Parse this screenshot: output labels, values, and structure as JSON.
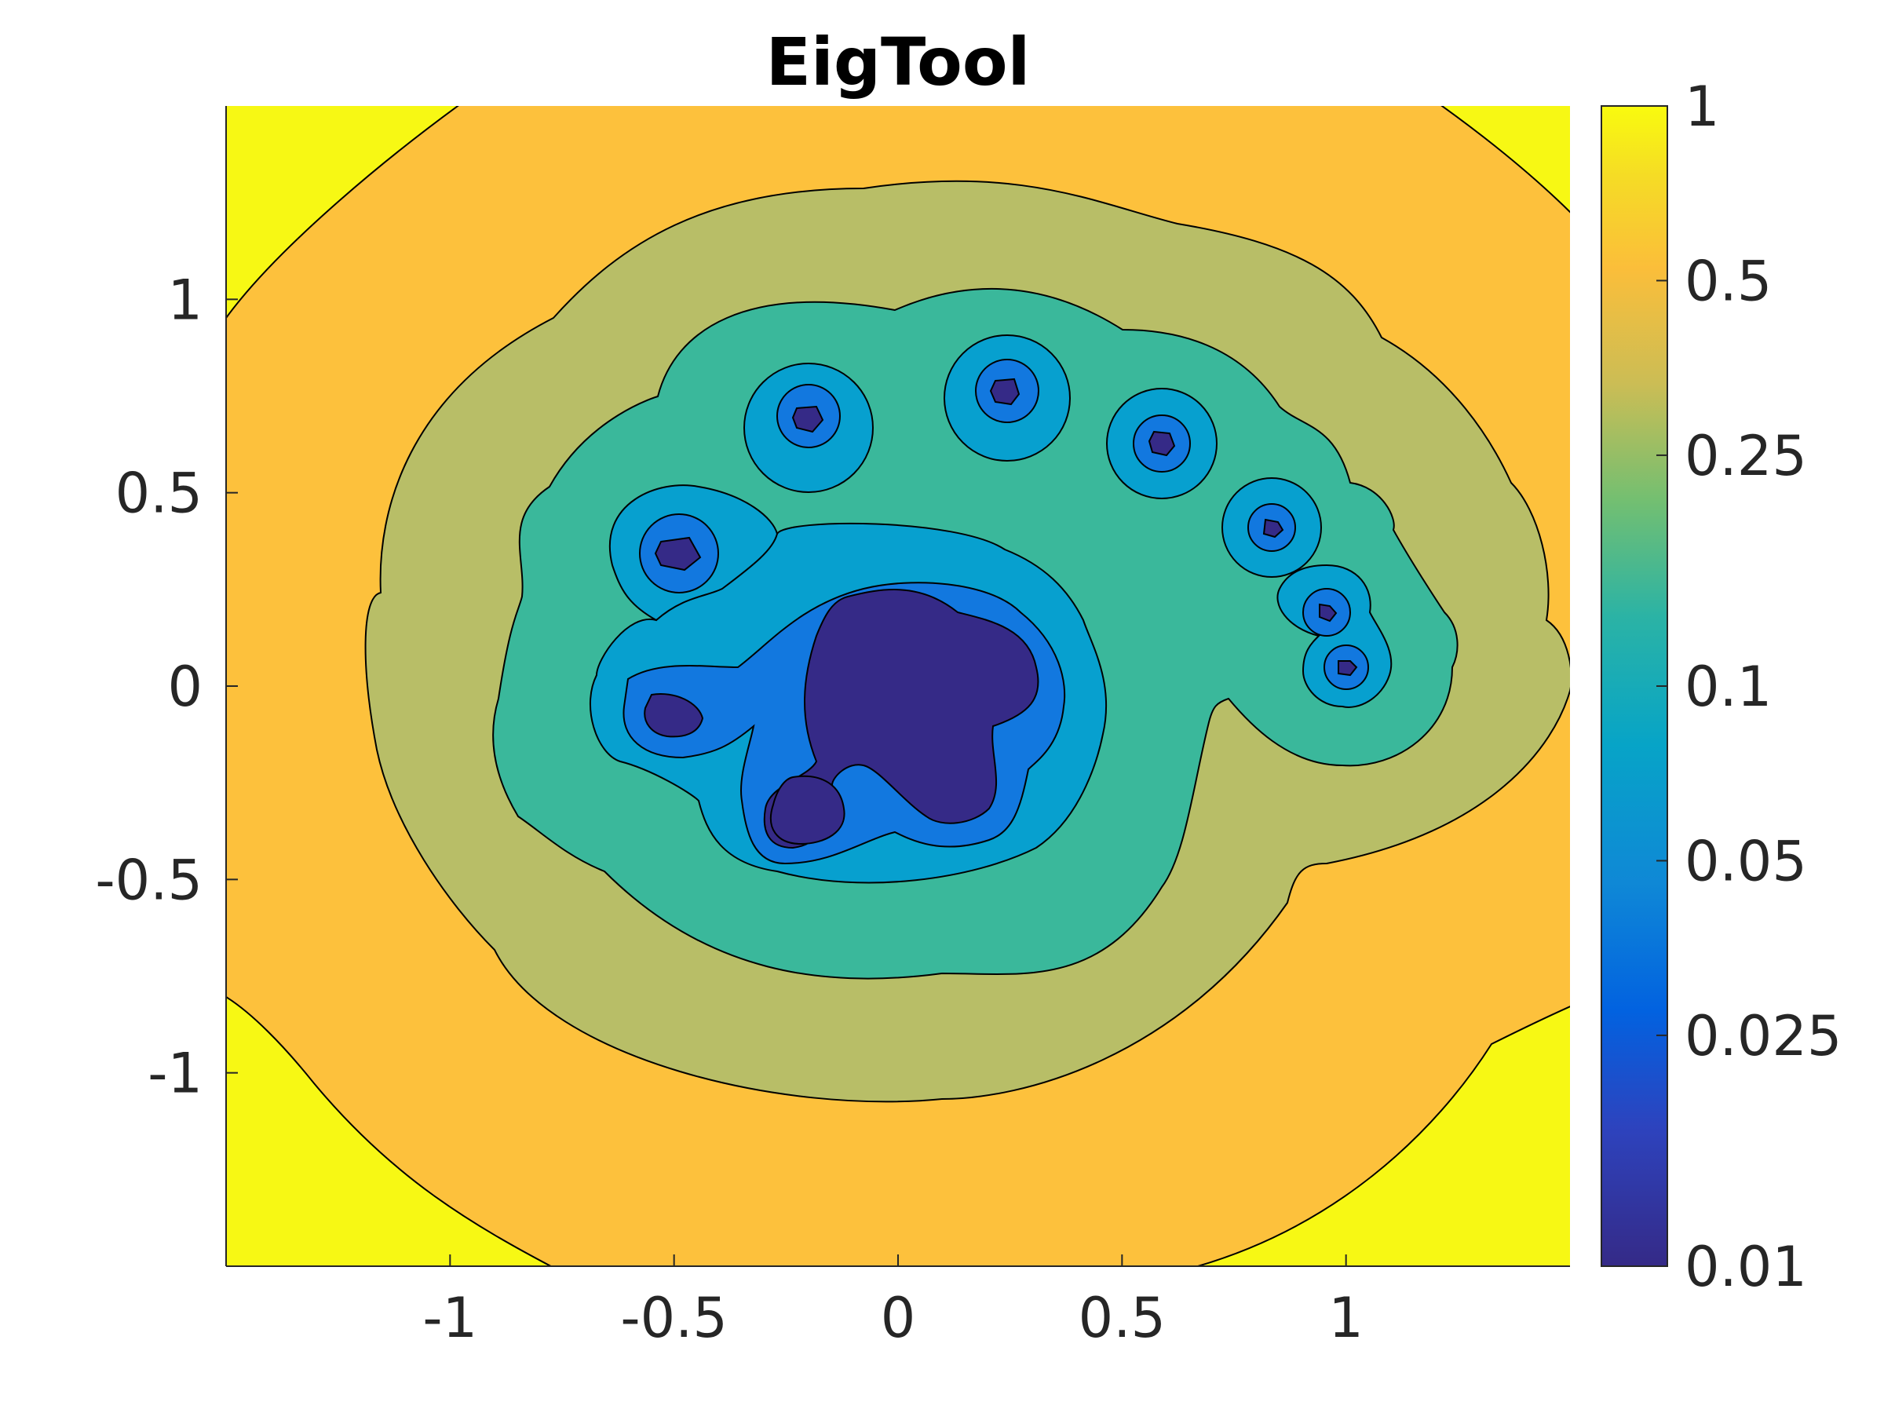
{
  "chart_data": {
    "type": "contour",
    "title": "EigTool",
    "xlabel": "",
    "ylabel": "",
    "xlim": [
      -1.5,
      1.5
    ],
    "ylim": [
      -1.5,
      1.5
    ],
    "x_ticks": [
      {
        "value": -1,
        "label": "-1"
      },
      {
        "value": -0.5,
        "label": "-0.5"
      },
      {
        "value": 0,
        "label": "0"
      },
      {
        "value": 0.5,
        "label": "0.5"
      },
      {
        "value": 1,
        "label": "1"
      }
    ],
    "y_ticks": [
      {
        "value": 1,
        "label": "1"
      },
      {
        "value": 0.5,
        "label": "0.5"
      },
      {
        "value": 0,
        "label": "0"
      },
      {
        "value": -0.5,
        "label": "-0.5"
      },
      {
        "value": -1,
        "label": "-1"
      }
    ],
    "colorbar": {
      "scale": "log",
      "range": [
        0.01,
        1
      ],
      "ticks": [
        {
          "value": 1,
          "label": "1"
        },
        {
          "value": 0.5,
          "label": "0.5"
        },
        {
          "value": 0.25,
          "label": "0.25"
        },
        {
          "value": 0.1,
          "label": "0.1"
        },
        {
          "value": 0.05,
          "label": "0.05"
        },
        {
          "value": 0.025,
          "label": "0.025"
        },
        {
          "value": 0.01,
          "label": "0.01"
        }
      ]
    },
    "contour_levels": [
      {
        "level": 0.5,
        "color": "#fdc13c"
      },
      {
        "level": 0.25,
        "color": "#b8be67"
      },
      {
        "level": 0.1,
        "color": "#3ab89b"
      },
      {
        "level": 0.05,
        "color": "#07a0cf"
      },
      {
        "level": 0.025,
        "color": "#1278df"
      },
      {
        "level": 0.01,
        "color": "#352a87"
      }
    ],
    "background_color": "#f7f814",
    "eigenvalues": [
      {
        "x": 0,
        "y": 0
      },
      {
        "x": -0.49,
        "y": 0.35
      },
      {
        "x": -0.22,
        "y": 0.7
      },
      {
        "x": 0.24,
        "y": 0.75
      },
      {
        "x": 0.59,
        "y": 0.64
      },
      {
        "x": 0.83,
        "y": 0.42
      },
      {
        "x": 0.95,
        "y": 0.2
      },
      {
        "x": 1.0,
        "y": 0.07
      },
      {
        "x": -0.49,
        "y": -0.05
      },
      {
        "x": -0.2,
        "y": -0.3
      }
    ]
  }
}
